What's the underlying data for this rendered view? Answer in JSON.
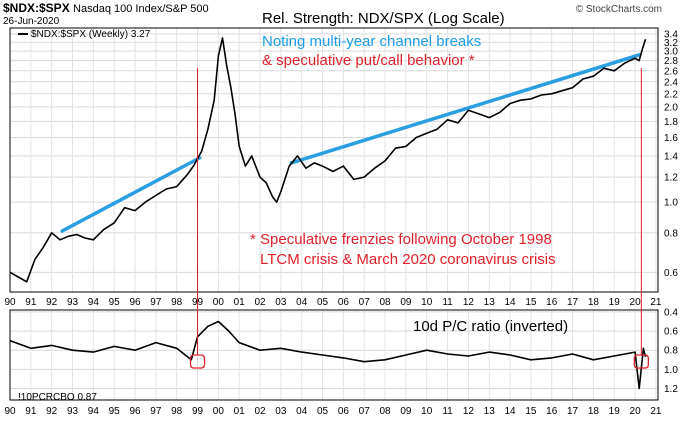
{
  "header": {
    "symbol": "$NDX:$SPX",
    "description": "Nasdaq 100 Index/S&P 500",
    "date": "26-Jun-2020",
    "brand": "© StockCharts.com"
  },
  "annotations": {
    "title": "Rel. Strength: NDX/SPX (Log Scale)",
    "blue_line1": "Noting multi-year channel breaks",
    "red_line": "& speculative put/call behavior *",
    "foot_line1": "* Speculative frenzies following October 1998",
    "foot_line2": "LTCM crisis & March 2020 coronavirus crisis",
    "pc_label": "10d P/C ratio (inverted)"
  },
  "chart_data": [
    {
      "type": "line",
      "legend": "$NDX:$SPX (Weekly) 3.27",
      "scale": "log",
      "last_value": 3.27,
      "y_ticks": [
        0.6,
        0.8,
        1.0,
        1.2,
        1.4,
        1.6,
        1.8,
        2.0,
        2.2,
        2.4,
        2.6,
        2.8,
        3.0,
        3.2,
        3.4
      ],
      "ylim": [
        0.52,
        3.55
      ],
      "x_ticks": [
        "90",
        "91",
        "92",
        "93",
        "94",
        "95",
        "96",
        "97",
        "98",
        "99",
        "00",
        "01",
        "02",
        "03",
        "04",
        "05",
        "06",
        "07",
        "08",
        "09",
        "10",
        "11",
        "12",
        "13",
        "14",
        "15",
        "16",
        "17",
        "18",
        "19",
        "20",
        "21"
      ],
      "xlim": [
        1990.0,
        2021.1
      ],
      "series": [
        {
          "x": [
            1990.0,
            1990.4,
            1990.8,
            1991.2,
            1991.6,
            1992.0,
            1992.4,
            1992.8,
            1993.2,
            1993.6,
            1994.0,
            1994.5,
            1995.0,
            1995.5,
            1996.0,
            1996.5,
            1997.0,
            1997.5,
            1998.0,
            1998.5,
            1998.8,
            1999.2,
            1999.5,
            1999.8,
            2000.0,
            2000.2,
            2000.4,
            2000.6,
            2000.8,
            2001.0,
            2001.3,
            2001.6,
            2002.0,
            2002.3,
            2002.6,
            2002.8,
            2003.0,
            2003.4,
            2003.8,
            2004.2,
            2004.6,
            2005.0,
            2005.5,
            2006.0,
            2006.5,
            2007.0,
            2007.5,
            2008.0,
            2008.5,
            2009.0,
            2009.5,
            2010.0,
            2010.5,
            2011.0,
            2011.5,
            2012.0,
            2012.5,
            2013.0,
            2013.5,
            2014.0,
            2014.5,
            2015.0,
            2015.5,
            2016.0,
            2016.5,
            2017.0,
            2017.5,
            2018.0,
            2018.5,
            2019.0,
            2019.5,
            2020.0,
            2020.2,
            2020.35,
            2020.5
          ],
          "y": [
            0.6,
            0.58,
            0.56,
            0.66,
            0.72,
            0.8,
            0.76,
            0.78,
            0.79,
            0.77,
            0.76,
            0.82,
            0.86,
            0.96,
            0.94,
            1.0,
            1.05,
            1.1,
            1.12,
            1.22,
            1.3,
            1.45,
            1.7,
            2.1,
            2.9,
            3.3,
            2.7,
            2.3,
            1.9,
            1.5,
            1.3,
            1.4,
            1.2,
            1.15,
            1.04,
            1.0,
            1.08,
            1.3,
            1.4,
            1.28,
            1.33,
            1.3,
            1.25,
            1.3,
            1.18,
            1.2,
            1.28,
            1.35,
            1.48,
            1.5,
            1.6,
            1.65,
            1.7,
            1.82,
            1.78,
            1.95,
            1.9,
            1.85,
            1.92,
            2.05,
            2.1,
            2.12,
            2.18,
            2.2,
            2.25,
            2.3,
            2.45,
            2.5,
            2.65,
            2.6,
            2.75,
            2.85,
            2.8,
            3.05,
            3.27
          ]
        }
      ],
      "trend_lines": [
        {
          "x": [
            1992.5,
            1999.1
          ],
          "y": [
            0.81,
            1.38
          ],
          "color": "#2a9fe0"
        },
        {
          "x": [
            2003.5,
            2020.2
          ],
          "y": [
            1.33,
            2.92
          ],
          "color": "#2a9fe0"
        }
      ],
      "event_markers": [
        1999.0,
        2020.3
      ]
    },
    {
      "type": "line",
      "legend": "!10PCRCBO 0.87",
      "scale": "linear",
      "inverted": true,
      "last_value": 0.87,
      "y_ticks": [
        0.4,
        0.6,
        0.8,
        1.0,
        1.2
      ],
      "ylim": [
        1.32,
        0.38
      ],
      "x_ticks": [
        "90",
        "91",
        "92",
        "93",
        "94",
        "95",
        "96",
        "97",
        "98",
        "99",
        "00",
        "01",
        "02",
        "03",
        "04",
        "05",
        "06",
        "07",
        "08",
        "09",
        "10",
        "11",
        "12",
        "13",
        "14",
        "15",
        "16",
        "17",
        "18",
        "19",
        "20",
        "21"
      ],
      "xlim": [
        1990.0,
        2021.1
      ],
      "series": [
        {
          "x": [
            1990.0,
            1991.0,
            1992.0,
            1993.0,
            1994.0,
            1995.0,
            1996.0,
            1997.0,
            1998.0,
            1998.7,
            1999.0,
            1999.5,
            2000.0,
            2000.5,
            2001.0,
            2002.0,
            2003.0,
            2004.0,
            2005.0,
            2006.0,
            2007.0,
            2008.0,
            2009.0,
            2010.0,
            2011.0,
            2012.0,
            2013.0,
            2014.0,
            2015.0,
            2016.0,
            2017.0,
            2018.0,
            2019.0,
            2020.0,
            2020.2,
            2020.4,
            2020.5
          ],
          "y": [
            0.7,
            0.78,
            0.75,
            0.8,
            0.82,
            0.76,
            0.8,
            0.72,
            0.78,
            0.9,
            0.66,
            0.55,
            0.5,
            0.6,
            0.72,
            0.8,
            0.78,
            0.82,
            0.85,
            0.88,
            0.92,
            0.9,
            0.85,
            0.8,
            0.84,
            0.86,
            0.82,
            0.85,
            0.9,
            0.88,
            0.84,
            0.9,
            0.86,
            0.82,
            1.2,
            0.78,
            0.87
          ]
        }
      ]
    }
  ]
}
